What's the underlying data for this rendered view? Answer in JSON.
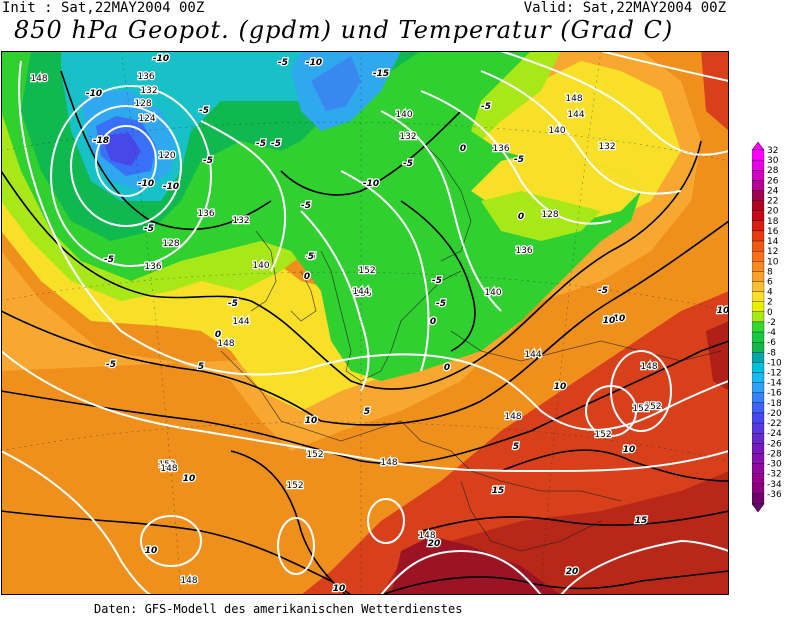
{
  "header": {
    "init": "Init : Sat,22MAY2004 00Z",
    "valid": "Valid: Sat,22MAY2004 00Z",
    "title": "850 hPa Geopot. (gpdm) und Temperatur (Grad C)"
  },
  "footer": {
    "credit": "Daten: GFS-Modell des amerikanischen Wetterdienstes"
  },
  "legend": {
    "levels": [
      "32",
      "30",
      "28",
      "26",
      "24",
      "22",
      "20",
      "18",
      "16",
      "14",
      "12",
      "10",
      "8",
      "6",
      "4",
      "2",
      "0",
      "-2",
      "-4",
      "-6",
      "-8",
      "-10",
      "-12",
      "-14",
      "-16",
      "-18",
      "-20",
      "-22",
      "-24",
      "-26",
      "-28",
      "-30",
      "-32",
      "-34",
      "-36"
    ],
    "colors": [
      "#ff00ff",
      "#e800e8",
      "#d000c0",
      "#b80098",
      "#a00050",
      "#b00020",
      "#c80818",
      "#d82010",
      "#e83c10",
      "#f05814",
      "#f87018",
      "#f88820",
      "#f8a028",
      "#f8c030",
      "#f8e028",
      "#e8f000",
      "#a8e818",
      "#30d830",
      "#18c840",
      "#10b848",
      "#00a8a8",
      "#00c0e0",
      "#18b8f0",
      "#30a0f8",
      "#3880f8",
      "#4060f8",
      "#4848f0",
      "#5838e0",
      "#6828d0",
      "#7818c0",
      "#8810b0",
      "#9008a0",
      "#980090",
      "#8c0080",
      "#700070"
    ]
  },
  "map_labels": {
    "geopotential": [
      "148",
      "136",
      "132",
      "128",
      "124",
      "120",
      "136",
      "132",
      "128",
      "136",
      "140",
      "144",
      "148",
      "152",
      "156",
      "144",
      "132",
      "140",
      "148",
      "144",
      "140",
      "136",
      "132",
      "128",
      "136",
      "140",
      "144",
      "148",
      "152",
      "152",
      "148",
      "152",
      "148",
      "148",
      "152",
      "152",
      "148",
      "152",
      "148"
    ],
    "temperature": [
      "-10",
      "-10",
      "-18",
      "-5",
      "-10",
      "-10",
      "-5",
      "-5",
      "-5",
      "-5",
      "-10",
      "-15",
      "-5",
      "-10",
      "-5",
      "0",
      "-5",
      "-5",
      "-5",
      "0",
      "-5",
      "-5",
      "0",
      "-5",
      "0",
      "-5",
      "5",
      "5",
      "10",
      "-5",
      "0",
      "-5",
      "-5",
      "0",
      "5",
      "10",
      "10",
      "10",
      "10",
      "10",
      "10",
      "15",
      "15",
      "20",
      "20",
      "10",
      "5",
      "10"
    ]
  }
}
